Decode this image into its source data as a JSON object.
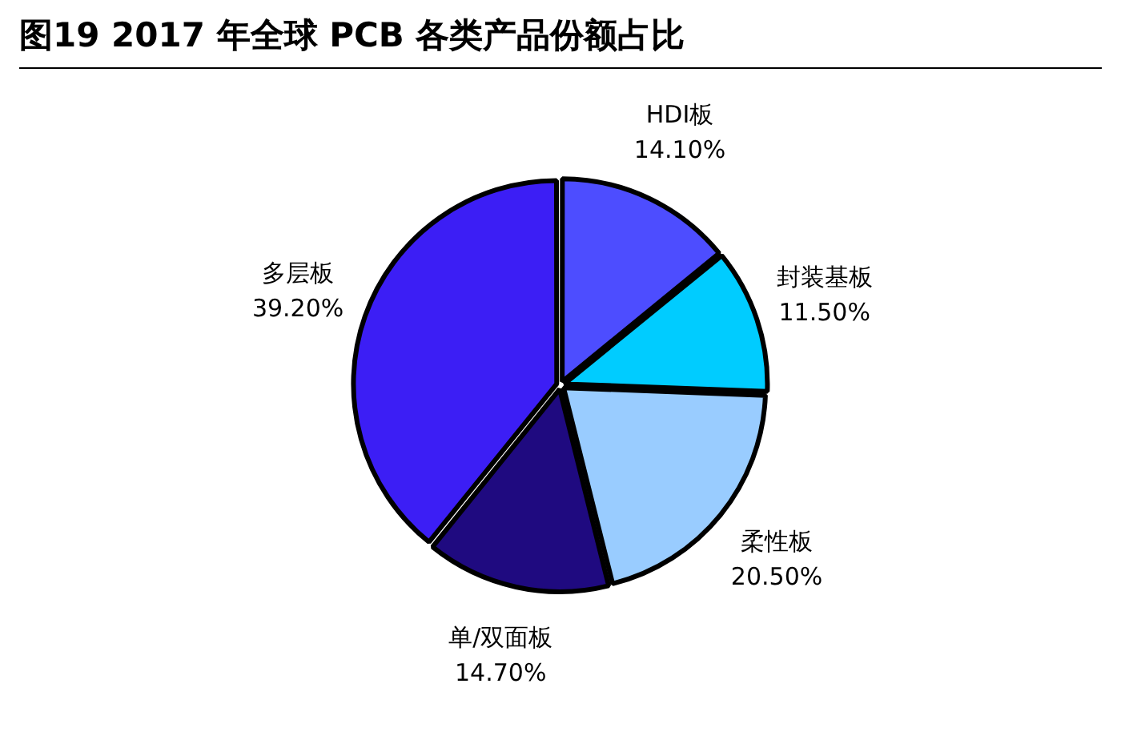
{
  "chart_data": {
    "type": "pie",
    "title": "图19  2017 年全球 PCB 各类产品份额占比",
    "categories": [
      "HDI板",
      "封装基板",
      "柔性板",
      "单/双面板",
      "多层板"
    ],
    "values": [
      14.1,
      11.5,
      20.5,
      14.7,
      39.2
    ],
    "value_labels": [
      "14.10%",
      "11.50%",
      "20.50%",
      "14.70%",
      "39.20%"
    ],
    "colors": [
      "#4d4dff",
      "#00ccff",
      "#99ccff",
      "#1f0a80",
      "#3c1ef5"
    ],
    "legend": false
  }
}
